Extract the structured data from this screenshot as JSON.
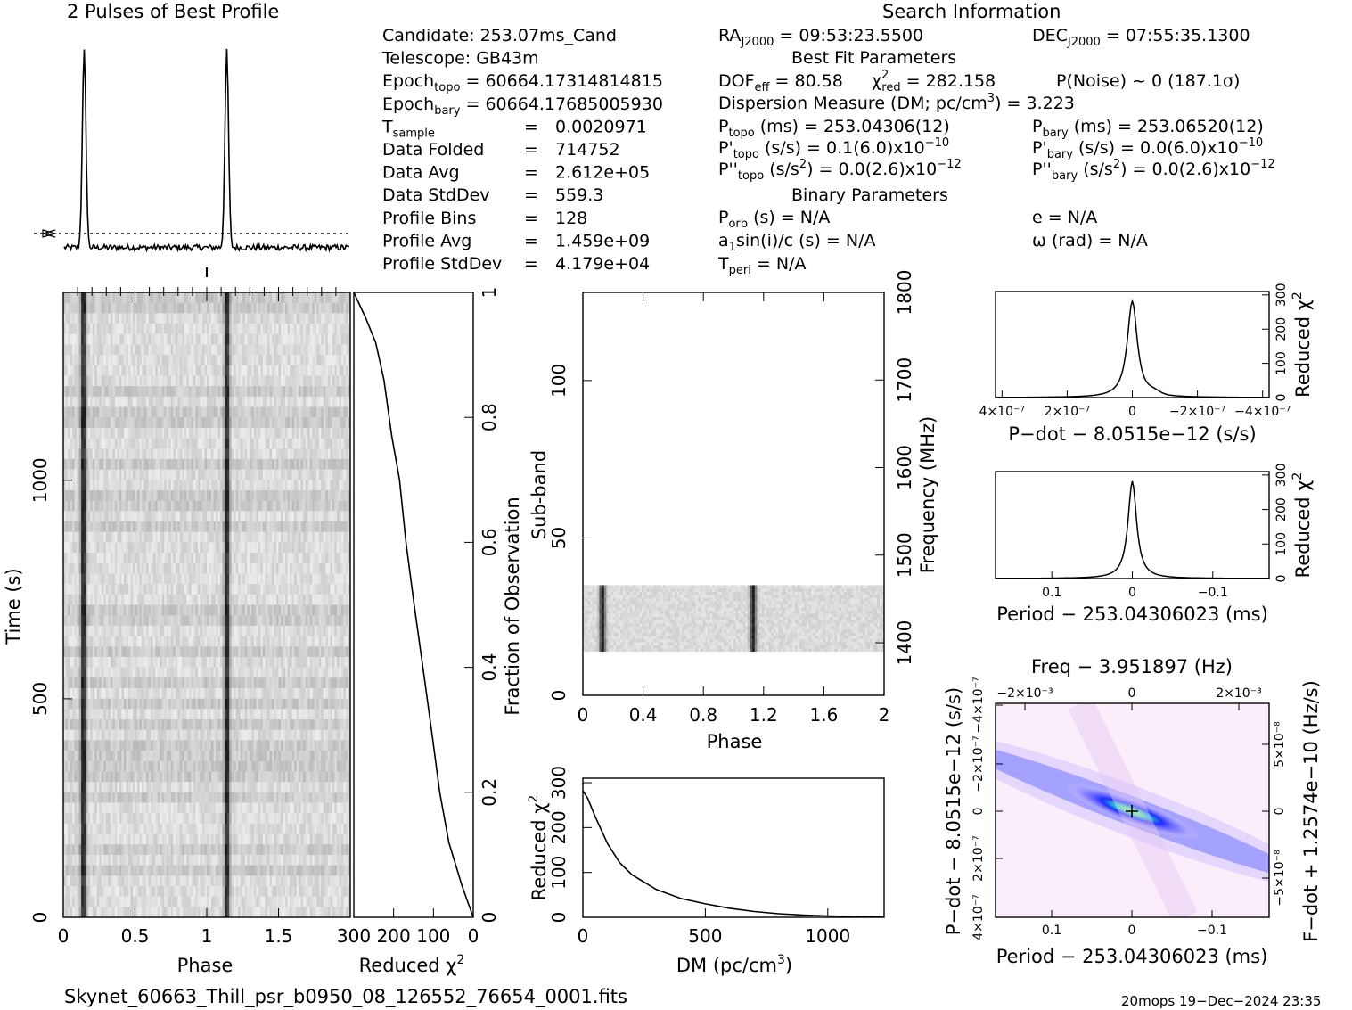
{
  "profile": {
    "title": "2 Pulses of Best Profile"
  },
  "search_info": {
    "title": "Search Information",
    "left": [
      {
        "k": "Candidate:  253.07ms_Cand"
      },
      {
        "k": "Telescope:  GB43m"
      },
      {
        "k": "Epoch",
        "sub": "topo",
        "v": " = 60664.17314814815"
      },
      {
        "k": "Epoch",
        "sub": "bary",
        "v": " = 60664.17685005930"
      },
      {
        "k": "T",
        "sub": "sample",
        "v": "0.0020971"
      },
      {
        "k": "Data Folded",
        "v": "714752"
      },
      {
        "k": "Data Avg",
        "v": "2.612e+05"
      },
      {
        "k": "Data StdDev",
        "v": "559.3"
      },
      {
        "k": "Profile Bins",
        "v": "128"
      },
      {
        "k": "Profile Avg",
        "v": "1.459e+09"
      },
      {
        "k": "Profile StdDev",
        "v": "4.179e+04"
      }
    ],
    "ra": "RA",
    "ra_sub": "J2000",
    "ra_val": " = 09:53:23.5500",
    "dec": "DEC",
    "dec_sub": "J2000",
    "dec_val": " = 07:55:35.1300",
    "best_fit_title": "Best Fit Parameters",
    "dof_label": "DOF",
    "dof_sub": "eff",
    "dof_val": " = 80.58",
    "chi_label": "χ",
    "chi_sup": "2",
    "chi_sub": "red",
    "chi_val": " = 282.158",
    "pnoise": "P(Noise) ~ 0   (187.1σ)",
    "dm_line_a": "Dispersion Measure (DM; pc/cm",
    "dm_line_sup": "3",
    "dm_line_b": ") = 3.223",
    "p_topo_k": "P",
    "p_topo_sub": "topo",
    "p_topo_v": " (ms) =  253.04306(12)",
    "pd_topo_k": "P'",
    "pd_topo_sub": "topo",
    "pd_topo_v": " (s/s) =  0.1(6.0)x10",
    "pd_topo_exp": "−10",
    "pdd_topo_k": "P''",
    "pdd_topo_sub": "topo",
    "pdd_topo_v": " (s/s",
    "pdd_topo_sup": "2",
    "pdd_topo_v2": ") = 0.0(2.6)x10",
    "pdd_topo_exp": "−12",
    "p_bary_k": "P",
    "p_bary_sub": "bary",
    "p_bary_v": " (ms) =  253.06520(12)",
    "pd_bary_k": "P'",
    "pd_bary_sub": "bary",
    "pd_bary_v": " (s/s) = 0.0(6.0)x10",
    "pd_bary_exp": "−10",
    "pdd_bary_k": "P''",
    "pdd_bary_sub": "bary",
    "pdd_bary_v": " (s/s",
    "pdd_bary_sup": "2",
    "pdd_bary_v2": ") = 0.0(2.6)x10",
    "pdd_bary_exp": "−12",
    "binary_title": "Binary Parameters",
    "porb_k": "P",
    "porb_sub": "orb",
    "porb_v": " (s) = N/A",
    "a1_k": "a",
    "a1_sub": "1",
    "a1_v": "sin(i)/c (s) = N/A",
    "tperi_k": "T",
    "tperi_sub": "peri",
    "tperi_v": " = N/A",
    "e_line": "e = N/A",
    "omega_line": "ω (rad) = N/A"
  },
  "footer": {
    "filename": "Skynet_60663_Thill_psr_b0950_08_126552_76654_0001.fits",
    "stamp": "20mops 19−Dec−2024 23:35"
  },
  "chart_data": [
    {
      "type": "line",
      "id": "pulse_profile",
      "title": "2 Pulses of Best Profile",
      "x_range": [
        0,
        2
      ],
      "peaks_at_phase": [
        0.14,
        1.14
      ],
      "peak_value": 1.0,
      "baseline_value": 0.0
    },
    {
      "type": "heatmap",
      "id": "time_phase",
      "xlabel": "Phase",
      "ylabel": "Time (s)",
      "x_ticks": [
        "0",
        "0.5",
        "1",
        "1.5"
      ],
      "x_range": [
        0,
        2
      ],
      "y_ticks": [
        "0",
        "500",
        "1000"
      ],
      "y_range": [
        0,
        1430
      ],
      "pulse_phases": [
        0.14,
        1.14
      ]
    },
    {
      "type": "line",
      "id": "reduced_chi2_vs_fraction",
      "xlabel": "Reduced χ",
      "xlabel_sup": "2",
      "x_ticks": [
        "300",
        "200",
        "100",
        "0"
      ],
      "x_range": [
        300,
        0
      ],
      "y2label": "Fraction of Observation",
      "y_ticks": [
        "0",
        "0.2",
        "0.4",
        "0.6",
        "0.8",
        "1"
      ],
      "y_range": [
        0,
        1
      ],
      "points": [
        [
          0,
          0
        ],
        [
          30,
          0.05
        ],
        [
          60,
          0.12
        ],
        [
          85,
          0.2
        ],
        [
          105,
          0.3
        ],
        [
          125,
          0.4
        ],
        [
          150,
          0.5
        ],
        [
          170,
          0.6
        ],
        [
          185,
          0.7
        ],
        [
          205,
          0.77
        ],
        [
          225,
          0.86
        ],
        [
          245,
          0.92
        ],
        [
          270,
          0.96
        ],
        [
          300,
          1.0
        ]
      ]
    },
    {
      "type": "heatmap",
      "id": "subband_phase",
      "xlabel": "Phase",
      "ylabel": "Sub-band",
      "y2label": "Frequency (MHz)",
      "x_ticks": [
        "0",
        "0.4",
        "0.8",
        "1.2",
        "1.6",
        "2"
      ],
      "x_range": [
        0,
        2
      ],
      "y_ticks": [
        "0",
        "50",
        "100"
      ],
      "y_range": [
        0,
        128
      ],
      "y2_ticks": [
        "1400",
        "1500",
        "1600",
        "1700",
        "1800"
      ],
      "y2_range": [
        1340,
        1800
      ],
      "occupied_subbands": [
        14,
        35
      ],
      "pulse_phases": [
        0.13,
        1.13
      ]
    },
    {
      "type": "line",
      "id": "chi2_vs_dm",
      "xlabel": "DM (pc/cm",
      "xlabel_sup": "3",
      "xlabel_end": ")",
      "ylabel": "Reduced χ",
      "ylabel_sup": "2",
      "x_ticks": [
        "0",
        "500",
        "1000"
      ],
      "x_range": [
        0,
        1230
      ],
      "y_ticks": [
        "0",
        "100",
        "200",
        "300"
      ],
      "y_range": [
        0,
        310
      ],
      "points": [
        [
          0,
          282
        ],
        [
          20,
          265
        ],
        [
          50,
          225
        ],
        [
          100,
          165
        ],
        [
          150,
          122
        ],
        [
          200,
          95
        ],
        [
          300,
          62
        ],
        [
          400,
          42
        ],
        [
          500,
          30
        ],
        [
          600,
          20
        ],
        [
          700,
          13
        ],
        [
          800,
          8
        ],
        [
          900,
          5
        ],
        [
          1000,
          3
        ],
        [
          1100,
          2
        ],
        [
          1230,
          1
        ]
      ]
    },
    {
      "type": "line",
      "id": "chi2_vs_pdot",
      "xlabel": "P−dot − 8.0515e−12 (s/s)",
      "ylabel": "Reduced χ",
      "ylabel_sup": "2",
      "x_ticks": [
        "4×10⁻⁷",
        "2×10⁻⁷",
        "0",
        "−2×10⁻⁷",
        "−4×10⁻⁷"
      ],
      "x_range": [
        4.2e-07,
        -4.2e-07
      ],
      "y_ticks": [
        "0",
        "100",
        "200",
        "300"
      ],
      "y_range": [
        0,
        310
      ],
      "peak_at": 0,
      "peak_value": 282
    },
    {
      "type": "line",
      "id": "chi2_vs_period",
      "xlabel": "Period − 253.04306023 (ms)",
      "ylabel": "Reduced χ",
      "ylabel_sup": "2",
      "x_ticks": [
        "0.1",
        "0",
        "−0.1"
      ],
      "x_range": [
        0.17,
        -0.17
      ],
      "y_ticks": [
        "0",
        "100",
        "200",
        "300"
      ],
      "y_range": [
        0,
        310
      ],
      "peak_at": 0,
      "peak_value": 282
    },
    {
      "type": "heatmap",
      "id": "pdot_period_plane",
      "title": "Freq − 3.951897 (Hz)",
      "xlabel": "Period − 253.04306023 (ms)",
      "ylabel": "P−dot − 8.0515e−12 (s/s)",
      "y2label": "F−dot + 1.2574e−10 (Hz/s)",
      "x_ticks": [
        "0.1",
        "0",
        "−0.1"
      ],
      "top_ticks": [
        "−2×10⁻³",
        "0",
        "2×10⁻³"
      ],
      "y_ticks": [
        "4×10⁻⁷",
        "2×10⁻⁷",
        "0",
        "−2×10⁻⁷",
        "−4×10⁻⁷"
      ],
      "y2_ticks": [
        "−5×10⁻⁸",
        "0",
        "5×10⁻⁸"
      ]
    }
  ],
  "colors": {
    "heatmap_bg": "#fbeefb",
    "ridge_blue": "#1f2cff",
    "ridge_core": "#23e0c8",
    "ridge_peak": "#c8ff3a"
  }
}
